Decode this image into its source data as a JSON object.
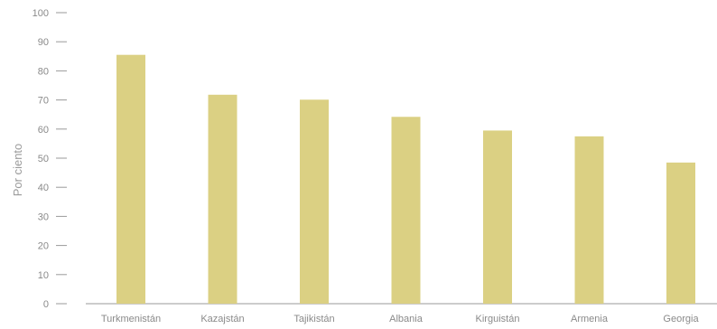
{
  "chart_data": {
    "type": "bar",
    "categories": [
      "Turkmenistán",
      "Kazajstán",
      "Tajikistán",
      "Albania",
      "Kirguistán",
      "Armenia",
      "Georgia"
    ],
    "values": [
      85.5,
      71.8,
      70.1,
      64.2,
      59.5,
      57.5,
      48.5
    ],
    "ylabel": "Por ciento",
    "ylim": [
      0,
      100
    ],
    "yticks": [
      0,
      10,
      20,
      30,
      40,
      50,
      60,
      70,
      80,
      90,
      100
    ],
    "grid": false,
    "bar_color": "#dbd083",
    "axis_color": "#9a9a9a",
    "text_color": "#8a8a8a"
  }
}
